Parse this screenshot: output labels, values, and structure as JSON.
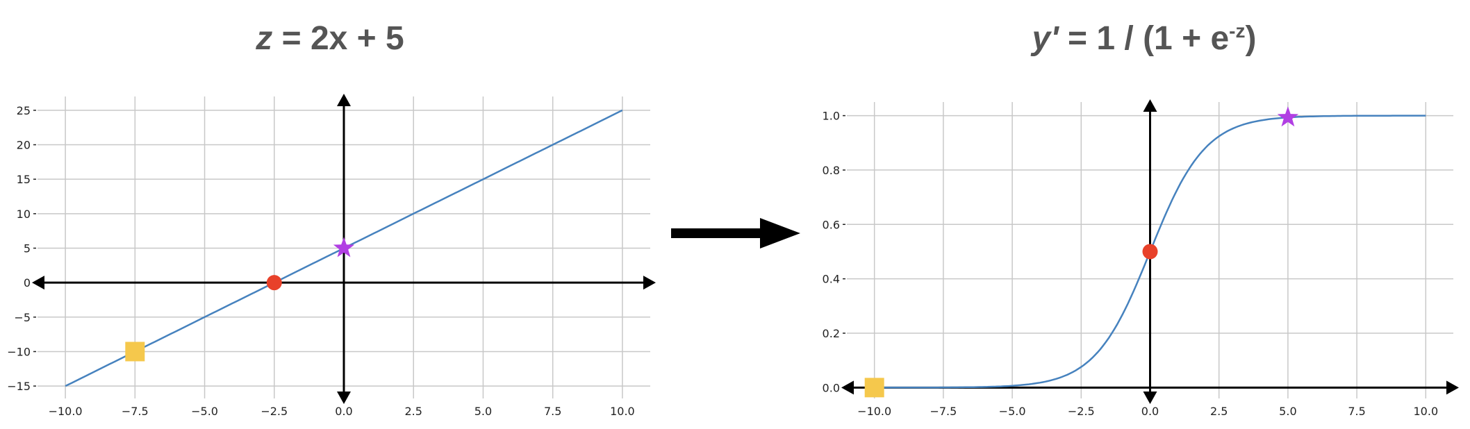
{
  "chart_data": [
    {
      "type": "line",
      "title_var": "z",
      "title_rest": " = 2x + 5",
      "xlim": [
        -11,
        11
      ],
      "ylim": [
        -16.8,
        27
      ],
      "xticks": [
        -10,
        -7.5,
        -5,
        -2.5,
        0,
        2.5,
        5,
        7.5,
        10
      ],
      "xtick_labels": [
        "−10.0",
        "−7.5",
        "−5.0",
        "−2.5",
        "0.0",
        "2.5",
        "5.0",
        "7.5",
        "10.0"
      ],
      "yticks": [
        -15,
        -10,
        -5,
        0,
        5,
        10,
        15,
        20,
        25
      ],
      "ytick_labels": [
        "−15",
        "−10",
        "−5",
        "0",
        "5",
        "10",
        "15",
        "20",
        "25"
      ],
      "grid": true,
      "function": "2x+5",
      "x_range": [
        -10,
        10
      ],
      "markers": [
        {
          "shape": "square",
          "x": -7.5,
          "y": -10,
          "color": "#F5C84C"
        },
        {
          "shape": "circle",
          "x": -2.5,
          "y": 0,
          "color": "#E8412A"
        },
        {
          "shape": "star",
          "x": 0,
          "y": 5,
          "color": "#B13FE3"
        }
      ]
    },
    {
      "type": "line",
      "title_var": "y'",
      "title_rest": " = 1 / (1 + e",
      "title_sup": "-z",
      "title_end": ")",
      "xlim": [
        -11,
        11
      ],
      "ylim": [
        -0.04,
        1.05
      ],
      "xticks": [
        -10,
        -7.5,
        -5,
        -2.5,
        0,
        2.5,
        5,
        7.5,
        10
      ],
      "xtick_labels": [
        "−10.0",
        "−7.5",
        "−5.0",
        "−2.5",
        "0.0",
        "2.5",
        "5.0",
        "7.5",
        "10.0"
      ],
      "yticks": [
        0,
        0.2,
        0.4,
        0.6,
        0.8,
        1.0
      ],
      "ytick_labels": [
        "0.0",
        "0.2",
        "0.4",
        "0.6",
        "0.8",
        "1.0"
      ],
      "grid": true,
      "function": "1/(1+exp(-x))",
      "x_range": [
        -10,
        10
      ],
      "markers": [
        {
          "shape": "square",
          "x": -10,
          "y": 0.0,
          "color": "#F5C84C"
        },
        {
          "shape": "circle",
          "x": 0,
          "y": 0.5,
          "color": "#E8412A"
        },
        {
          "shape": "star",
          "x": 5,
          "y": 0.993,
          "color": "#B13FE3"
        }
      ]
    }
  ],
  "colors": {
    "line": "#4682BE",
    "grid": "#C8C8C8",
    "axis": "#000000",
    "title": "#555555"
  }
}
